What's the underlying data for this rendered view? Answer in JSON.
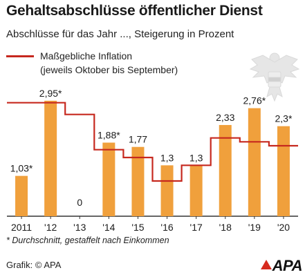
{
  "header": {
    "title": "Gehaltsabschlüsse öffentlicher Dienst",
    "subtitle": "Abschlüsse für das Jahr ..., Steigerung in Prozent"
  },
  "legend": {
    "line1": "Maßgebliche Inflation",
    "line2": "(jeweils Oktober bis September)"
  },
  "footnote": "* Durchschnitt, gestaffelt nach Einkommen",
  "source": "Grafik: © APA",
  "logo_text": "APA",
  "icons": {
    "watermark": "austrian-eagle-crest-icon",
    "logo": "apa-logo"
  },
  "colors": {
    "bar": "#f0a03c",
    "inflation": "#c6281e",
    "logo_mark": "#d62a1e"
  },
  "chart_data": {
    "type": "bar",
    "categories": [
      "2011",
      "'12",
      "'13",
      "'14",
      "'15",
      "'16",
      "'17",
      "'18",
      "'19",
      "'20"
    ],
    "values": [
      1.03,
      2.95,
      0,
      1.88,
      1.77,
      1.3,
      1.3,
      2.33,
      2.76,
      2.3
    ],
    "value_labels": [
      "1,03*",
      "2,95*",
      "0",
      "1,88*",
      "1,77",
      "1,3",
      "1,3",
      "2,33",
      "2,76*",
      "2,3*"
    ],
    "series": [
      {
        "name": "Maßgebliche Inflation",
        "type": "step-line",
        "values": [
          2.9,
          2.9,
          2.6,
          1.7,
          1.5,
          0.9,
          1.3,
          2.0,
          1.9,
          1.8
        ]
      }
    ],
    "ylim": [
      0,
      3.4
    ],
    "grid": false,
    "legend_position": "top-left"
  }
}
